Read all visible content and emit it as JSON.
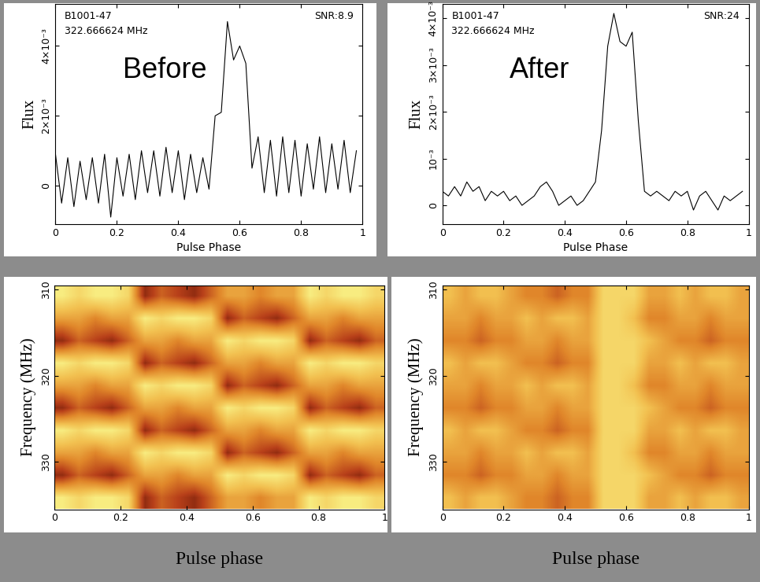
{
  "chart_data": [
    {
      "type": "line",
      "color": "black",
      "xlabel": "Pulse Phase",
      "ylabel": "Flux",
      "annotations": {
        "source": "B1001-47",
        "frequency": "322.666624 MHz",
        "snr": "SNR:8.9",
        "label": "Before"
      },
      "x": [
        0,
        0.02,
        0.04,
        0.06,
        0.08,
        0.1,
        0.12,
        0.14,
        0.16,
        0.18,
        0.2,
        0.22,
        0.24,
        0.26,
        0.28,
        0.3,
        0.32,
        0.34,
        0.36,
        0.38,
        0.4,
        0.42,
        0.44,
        0.46,
        0.48,
        0.5,
        0.52,
        0.54,
        0.56,
        0.58,
        0.6,
        0.62,
        0.64,
        0.66,
        0.68,
        0.7,
        0.72,
        0.74,
        0.76,
        0.78,
        0.8,
        0.82,
        0.84,
        0.86,
        0.88,
        0.9,
        0.92,
        0.94,
        0.96,
        0.98
      ],
      "values": [
        0.0009,
        -0.0005,
        0.0008,
        -0.0006,
        0.0007,
        -0.0004,
        0.0008,
        -0.0005,
        0.0009,
        -0.0009,
        0.0008,
        -0.0003,
        0.0009,
        -0.0004,
        0.001,
        -0.0002,
        0.001,
        -0.0003,
        0.0011,
        -0.0002,
        0.001,
        -0.0004,
        0.0009,
        -0.0002,
        0.0008,
        -0.0001,
        0.002,
        0.0021,
        0.0047,
        0.0036,
        0.004,
        0.0035,
        0.0005,
        0.0014,
        -0.0002,
        0.0013,
        -0.0003,
        0.0014,
        -0.0002,
        0.0013,
        -0.0003,
        0.0012,
        -0.0001,
        0.0014,
        -0.0002,
        0.0012,
        -0.0001,
        0.0013,
        -0.0002,
        0.001
      ],
      "xlim": [
        0,
        1
      ],
      "xticks": [
        0,
        0.2,
        0.4,
        0.6,
        0.8,
        1
      ],
      "ylim": [
        -0.0011,
        0.0052
      ],
      "yticks": [
        0,
        {
          "value": 0.002,
          "label": "2×10⁻³"
        },
        {
          "value": 0.004,
          "label": "4×10⁻³"
        }
      ]
    },
    {
      "type": "line",
      "color": "black",
      "xlabel": "Pulse Phase",
      "ylabel": "Flux",
      "annotations": {
        "source": "B1001-47",
        "frequency": "322.666624 MHz",
        "snr": "SNR:24",
        "label": "After"
      },
      "x": [
        0,
        0.02,
        0.04,
        0.06,
        0.08,
        0.1,
        0.12,
        0.14,
        0.16,
        0.18,
        0.2,
        0.22,
        0.24,
        0.26,
        0.28,
        0.3,
        0.32,
        0.34,
        0.36,
        0.38,
        0.4,
        0.42,
        0.44,
        0.46,
        0.48,
        0.5,
        0.52,
        0.54,
        0.56,
        0.58,
        0.6,
        0.62,
        0.64,
        0.66,
        0.68,
        0.7,
        0.72,
        0.74,
        0.76,
        0.78,
        0.8,
        0.82,
        0.84,
        0.86,
        0.88,
        0.9,
        0.92,
        0.94,
        0.96,
        0.98
      ],
      "values": [
        0.0003,
        0.0002,
        0.0004,
        0.0002,
        0.0005,
        0.0003,
        0.0004,
        0.0001,
        0.0003,
        0.0002,
        0.0003,
        0.0001,
        0.0002,
        0,
        0.0001,
        0.0002,
        0.0004,
        0.0005,
        0.0003,
        0,
        0.0001,
        0.0002,
        0,
        0.0001,
        0.0003,
        0.0005,
        0.0016,
        0.0034,
        0.0041,
        0.0035,
        0.0034,
        0.0037,
        0.0018,
        0.0003,
        0.0002,
        0.0003,
        0.0002,
        0.0001,
        0.0003,
        0.0002,
        0.0003,
        -0.0001,
        0.0002,
        0.0003,
        0.0001,
        -0.0001,
        0.0002,
        0.0001,
        0.0002,
        0.0003
      ],
      "xlim": [
        0,
        1
      ],
      "xticks": [
        0,
        0.2,
        0.4,
        0.6,
        0.8,
        1
      ],
      "ylim": [
        -0.0004,
        0.0043
      ],
      "yticks": [
        0,
        {
          "value": 0.001,
          "label": "10⁻³"
        },
        {
          "value": 0.002,
          "label": "2×10⁻³"
        },
        {
          "value": 0.003,
          "label": "3×10⁻³"
        },
        {
          "value": 0.004,
          "label": "4×10⁻³"
        }
      ]
    },
    {
      "type": "heatmap",
      "xlabel": "Pulse phase",
      "ylabel": "Frequency (MHz)",
      "xlim": [
        0,
        1
      ],
      "xticks": [
        0,
        0.2,
        0.4,
        0.6,
        0.8,
        1
      ],
      "ylim": [
        335.5,
        309.5
      ],
      "yticks": [
        310,
        320,
        330
      ],
      "value_range": [
        0,
        10
      ],
      "cells": [
        [
          8,
          7,
          8,
          8,
          7,
          1,
          3,
          2,
          1,
          3,
          5,
          5,
          4,
          5,
          5,
          8,
          7,
          8,
          8,
          7
        ],
        [
          5,
          5,
          4,
          5,
          5,
          8,
          7,
          8,
          8,
          7,
          1,
          3,
          2,
          1,
          3,
          5,
          5,
          4,
          5,
          5
        ],
        [
          1,
          3,
          2,
          1,
          3,
          5,
          5,
          4,
          5,
          5,
          8,
          7,
          8,
          8,
          7,
          1,
          3,
          2,
          1,
          3
        ],
        [
          8,
          7,
          8,
          8,
          7,
          1,
          3,
          2,
          1,
          3,
          5,
          5,
          4,
          5,
          5,
          8,
          7,
          8,
          8,
          7
        ],
        [
          5,
          5,
          4,
          5,
          5,
          8,
          7,
          8,
          8,
          7,
          1,
          3,
          2,
          1,
          3,
          5,
          5,
          4,
          5,
          5
        ],
        [
          1,
          3,
          2,
          1,
          3,
          5,
          5,
          4,
          5,
          5,
          8,
          7,
          8,
          8,
          7,
          1,
          3,
          2,
          1,
          3
        ],
        [
          8,
          7,
          8,
          8,
          7,
          1,
          3,
          2,
          1,
          3,
          5,
          5,
          4,
          5,
          5,
          8,
          7,
          8,
          8,
          7
        ],
        [
          5,
          5,
          4,
          5,
          5,
          8,
          7,
          8,
          8,
          7,
          1,
          3,
          2,
          1,
          3,
          5,
          5,
          4,
          5,
          5
        ],
        [
          1,
          3,
          2,
          1,
          3,
          5,
          5,
          4,
          5,
          5,
          8,
          7,
          8,
          8,
          7,
          1,
          3,
          2,
          1,
          3
        ],
        [
          8,
          7,
          8,
          8,
          7,
          1,
          3,
          2,
          1,
          3,
          5,
          5,
          4,
          5,
          5,
          8,
          7,
          8,
          8,
          7
        ]
      ]
    },
    {
      "type": "heatmap",
      "xlabel": "Pulse phase",
      "ylabel": "Frequency (MHz)",
      "xlim": [
        0,
        1
      ],
      "xticks": [
        0,
        0.2,
        0.4,
        0.6,
        0.8,
        1
      ],
      "ylim": [
        335.5,
        309.5
      ],
      "yticks": [
        310,
        320,
        330
      ],
      "value_range": [
        0,
        10
      ],
      "cells": [
        [
          6,
          5,
          6,
          6,
          5,
          4,
          4,
          3,
          4,
          4,
          7,
          7,
          7,
          5,
          5,
          6,
          5,
          6,
          6,
          5
        ],
        [
          5,
          5,
          4,
          5,
          5,
          6,
          5,
          6,
          6,
          5,
          7,
          7,
          6,
          4,
          4,
          5,
          5,
          4,
          5,
          5
        ],
        [
          4,
          4,
          3,
          4,
          4,
          5,
          5,
          4,
          5,
          5,
          7,
          7,
          7,
          6,
          5,
          4,
          4,
          3,
          4,
          4
        ],
        [
          6,
          5,
          6,
          6,
          5,
          4,
          4,
          3,
          4,
          4,
          7,
          7,
          7,
          5,
          5,
          6,
          5,
          6,
          6,
          5
        ],
        [
          5,
          5,
          4,
          5,
          5,
          6,
          5,
          6,
          6,
          5,
          7,
          7,
          6,
          4,
          4,
          5,
          5,
          4,
          5,
          5
        ],
        [
          4,
          4,
          3,
          4,
          4,
          5,
          5,
          4,
          5,
          5,
          7,
          7,
          7,
          6,
          5,
          4,
          4,
          3,
          4,
          4
        ],
        [
          6,
          5,
          6,
          6,
          5,
          4,
          4,
          3,
          4,
          4,
          7,
          7,
          7,
          5,
          5,
          6,
          5,
          6,
          6,
          5
        ],
        [
          5,
          5,
          4,
          5,
          5,
          6,
          5,
          6,
          6,
          5,
          7,
          7,
          6,
          4,
          4,
          5,
          5,
          4,
          5,
          5
        ],
        [
          4,
          4,
          3,
          4,
          4,
          5,
          5,
          4,
          5,
          5,
          7,
          7,
          7,
          6,
          5,
          4,
          4,
          3,
          4,
          4
        ],
        [
          6,
          5,
          6,
          6,
          5,
          4,
          4,
          3,
          4,
          4,
          7,
          7,
          7,
          5,
          5,
          6,
          5,
          6,
          6,
          5
        ]
      ]
    }
  ]
}
